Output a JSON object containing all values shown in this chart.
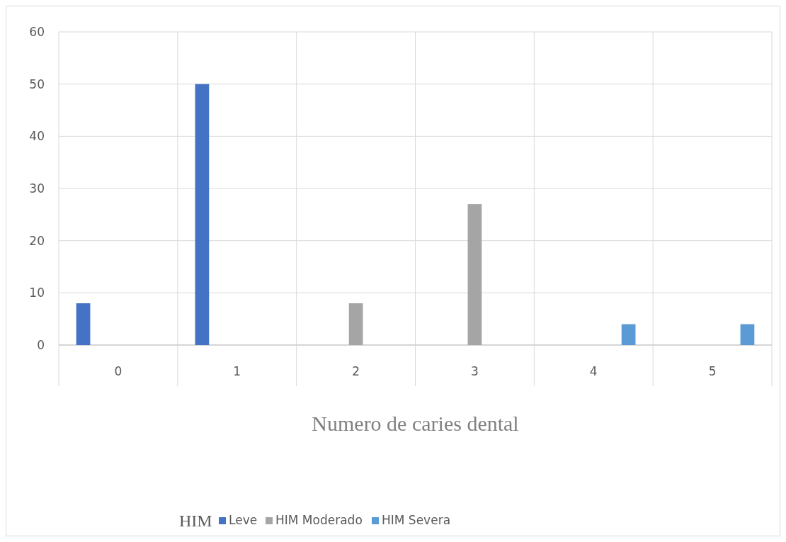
{
  "chart_data": {
    "type": "bar",
    "xlabel": "Numero de caries dental",
    "legend_title": "HIM",
    "categories": [
      "0",
      "1",
      "2",
      "3",
      "4",
      "5"
    ],
    "series": [
      {
        "name": "Leve",
        "color": "#4472c4",
        "values": [
          8,
          50,
          null,
          null,
          null,
          null
        ]
      },
      {
        "name": "HIM Moderado",
        "color": "#a5a5a5",
        "values": [
          null,
          null,
          8,
          27,
          null,
          null
        ]
      },
      {
        "name": "HIM Severa",
        "color": "#5b9bd5",
        "values": [
          null,
          null,
          null,
          null,
          4,
          4
        ]
      }
    ],
    "ylim": [
      0,
      60
    ],
    "yticks": [
      0,
      10,
      20,
      30,
      40,
      50,
      60
    ],
    "grid": true,
    "legend": "bottom"
  }
}
